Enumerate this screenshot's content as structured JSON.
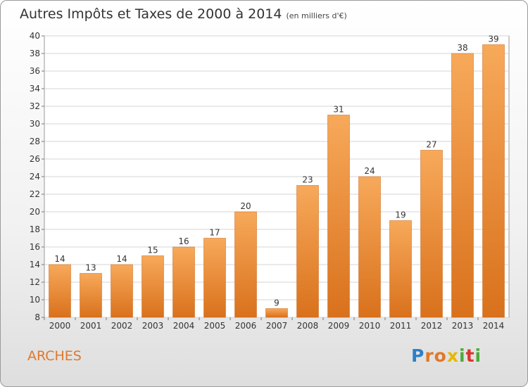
{
  "header": {
    "title": "Autres Impôts et Taxes de 2000 à 2014",
    "subtitle": "(en milliers d'€)"
  },
  "footer": {
    "commune": "ARCHES",
    "logo": "Proxiti"
  },
  "colors": {
    "bar_top": "#f7a95a",
    "bar_bottom": "#d9711c",
    "commune_text": "#e0782a"
  },
  "chart_data": {
    "type": "bar",
    "title": "Autres Impôts et Taxes de 2000 à 2014",
    "subtitle": "(en milliers d'€)",
    "categories": [
      "2000",
      "2001",
      "2002",
      "2003",
      "2004",
      "2005",
      "2006",
      "2007",
      "2008",
      "2009",
      "2010",
      "2011",
      "2012",
      "2013",
      "2014"
    ],
    "values": [
      14,
      13,
      14,
      15,
      16,
      17,
      20,
      9,
      23,
      31,
      24,
      19,
      27,
      38,
      39
    ],
    "ylim": [
      8,
      40
    ],
    "yticks": [
      8,
      10,
      12,
      14,
      16,
      18,
      20,
      22,
      24,
      26,
      28,
      30,
      32,
      34,
      36,
      38,
      40
    ],
    "grid": true,
    "data_labels": true
  }
}
